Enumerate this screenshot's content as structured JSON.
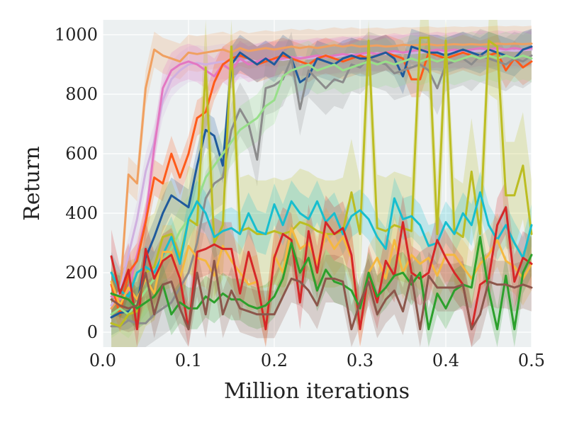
{
  "chart_data": {
    "type": "line",
    "title": "",
    "xlabel": "Million iterations",
    "ylabel": "Return",
    "xlim": [
      0.0,
      0.5
    ],
    "ylim": [
      -50,
      1050
    ],
    "xticks": [
      0.0,
      0.1,
      0.2,
      0.3,
      0.4,
      0.5
    ],
    "xtick_labels": [
      "0.0",
      "0.1",
      "0.2",
      "0.3",
      "0.4",
      "0.5"
    ],
    "yticks": [
      0,
      200,
      400,
      600,
      800,
      1000
    ],
    "ytick_labels": [
      "0",
      "200",
      "400",
      "600",
      "800",
      "1000"
    ],
    "grid": true,
    "background": "#ecf0f1",
    "x": [
      0.01,
      0.02,
      0.03,
      0.04,
      0.05,
      0.06,
      0.07,
      0.08,
      0.09,
      0.1,
      0.11,
      0.12,
      0.13,
      0.14,
      0.15,
      0.16,
      0.17,
      0.18,
      0.19,
      0.2,
      0.21,
      0.22,
      0.23,
      0.24,
      0.25,
      0.26,
      0.27,
      0.28,
      0.29,
      0.3,
      0.31,
      0.32,
      0.33,
      0.34,
      0.35,
      0.36,
      0.37,
      0.38,
      0.39,
      0.4,
      0.41,
      0.42,
      0.43,
      0.44,
      0.45,
      0.46,
      0.47,
      0.48,
      0.49,
      0.5
    ],
    "series": [
      {
        "color": "#f0a060",
        "band": 60,
        "values": [
          80,
          120,
          530,
          500,
          820,
          950,
          930,
          920,
          910,
          940,
          935,
          940,
          945,
          950,
          940,
          955,
          945,
          950,
          955,
          950,
          955,
          960,
          955,
          960,
          955,
          960,
          965,
          960,
          965,
          960,
          962,
          964,
          960,
          962,
          966,
          964,
          966,
          968,
          964,
          966,
          968,
          966,
          968,
          966,
          968,
          970,
          968,
          970,
          968,
          970
        ]
      },
      {
        "color": "#d0b0e0",
        "band": 60,
        "values": [
          90,
          140,
          260,
          380,
          540,
          640,
          780,
          850,
          880,
          900,
          905,
          900,
          905,
          910,
          905,
          910,
          915,
          910,
          915,
          920,
          915,
          920,
          925,
          920,
          925,
          930,
          925,
          930,
          935,
          930,
          935,
          938,
          935,
          938,
          940,
          938,
          940,
          942,
          940,
          942,
          944,
          942,
          944,
          946,
          944,
          946,
          948,
          946,
          948,
          950
        ]
      },
      {
        "color": "#e377c2",
        "band": 60,
        "values": [
          120,
          110,
          140,
          260,
          380,
          620,
          820,
          880,
          900,
          910,
          900,
          880,
          860,
          900,
          880,
          920,
          900,
          910,
          920,
          915,
          920,
          925,
          920,
          925,
          930,
          925,
          930,
          935,
          930,
          935,
          940,
          935,
          940,
          945,
          940,
          945,
          950,
          945,
          950,
          945,
          950,
          945,
          950,
          955,
          950,
          955,
          950,
          955,
          950,
          955
        ]
      },
      {
        "color": "#ff5a1a",
        "band": 60,
        "values": [
          160,
          60,
          200,
          240,
          370,
          520,
          500,
          600,
          520,
          600,
          720,
          740,
          840,
          900,
          920,
          930,
          920,
          900,
          910,
          920,
          930,
          920,
          910,
          900,
          920,
          930,
          920,
          910,
          920,
          930,
          920,
          930,
          940,
          930,
          920,
          850,
          850,
          940,
          930,
          920,
          930,
          940,
          930,
          920,
          930,
          940,
          880,
          920,
          890,
          910
        ]
      },
      {
        "color": "#1f5a9c",
        "band": 60,
        "values": [
          50,
          65,
          70,
          90,
          250,
          320,
          400,
          460,
          440,
          420,
          560,
          680,
          660,
          560,
          900,
          940,
          920,
          900,
          920,
          900,
          940,
          920,
          840,
          860,
          920,
          910,
          900,
          920,
          930,
          920,
          920,
          930,
          940,
          920,
          860,
          960,
          950,
          940,
          940,
          930,
          940,
          950,
          940,
          930,
          950,
          940,
          930,
          920,
          950,
          960
        ]
      },
      {
        "color": "#8c8c8c",
        "band": 90,
        "values": [
          20,
          20,
          40,
          30,
          30,
          60,
          80,
          100,
          150,
          200,
          300,
          450,
          500,
          520,
          680,
          750,
          700,
          580,
          820,
          830,
          850,
          920,
          750,
          880,
          850,
          820,
          850,
          840,
          900,
          890,
          920,
          910,
          900,
          870,
          880,
          890,
          900,
          880,
          820,
          900,
          910,
          920,
          900,
          930,
          920,
          910,
          900,
          920,
          910,
          930
        ]
      },
      {
        "color": "#98df8a",
        "band": 80,
        "values": [
          60,
          80,
          60,
          100,
          140,
          180,
          240,
          280,
          340,
          380,
          440,
          520,
          560,
          600,
          640,
          680,
          700,
          720,
          760,
          780,
          860,
          880,
          890,
          900,
          880,
          890,
          900,
          880,
          890,
          900,
          910,
          900,
          910,
          900,
          910,
          920,
          910,
          920,
          910,
          920,
          910,
          920,
          930,
          920,
          930,
          920,
          930,
          920,
          930,
          920
        ]
      },
      {
        "color": "#bcbd22",
        "band": 180,
        "values": [
          30,
          20,
          60,
          70,
          200,
          220,
          320,
          330,
          250,
          380,
          360,
          890,
          300,
          360,
          960,
          340,
          350,
          330,
          330,
          340,
          330,
          340,
          370,
          360,
          340,
          330,
          330,
          340,
          470,
          330,
          980,
          350,
          340,
          360,
          350,
          340,
          990,
          990,
          330,
          980,
          340,
          320,
          540,
          330,
          980,
          960,
          460,
          460,
          560,
          330
        ]
      },
      {
        "color": "#17becf",
        "band": 70,
        "values": [
          200,
          140,
          120,
          200,
          220,
          200,
          260,
          320,
          230,
          380,
          440,
          400,
          320,
          340,
          350,
          330,
          400,
          340,
          330,
          430,
          360,
          440,
          400,
          380,
          440,
          370,
          400,
          330,
          390,
          410,
          380,
          320,
          280,
          450,
          380,
          390,
          360,
          290,
          300,
          370,
          330,
          400,
          360,
          470,
          360,
          310,
          360,
          300,
          250,
          360
        ]
      },
      {
        "color": "#f5b840",
        "band": 90,
        "values": [
          170,
          90,
          150,
          110,
          180,
          130,
          270,
          270,
          180,
          290,
          250,
          240,
          190,
          290,
          240,
          200,
          160,
          170,
          10,
          260,
          200,
          350,
          280,
          300,
          230,
          330,
          280,
          320,
          250,
          10,
          200,
          250,
          180,
          310,
          200,
          260,
          230,
          250,
          190,
          260,
          260,
          220,
          180,
          230,
          260,
          310,
          240,
          220,
          180,
          230
        ]
      },
      {
        "color": "#d62728",
        "band": 90,
        "values": [
          255,
          130,
          210,
          10,
          280,
          180,
          240,
          260,
          180,
          10,
          270,
          280,
          295,
          280,
          280,
          130,
          270,
          170,
          10,
          250,
          330,
          310,
          100,
          340,
          200,
          370,
          330,
          350,
          260,
          10,
          200,
          100,
          240,
          190,
          370,
          200,
          180,
          200,
          310,
          250,
          200,
          160,
          10,
          160,
          180,
          360,
          420,
          170,
          250,
          230
        ]
      },
      {
        "color": "#2ca02c",
        "band": 70,
        "values": [
          130,
          120,
          110,
          80,
          100,
          120,
          160,
          60,
          100,
          80,
          80,
          120,
          100,
          130,
          110,
          110,
          90,
          80,
          90,
          120,
          180,
          300,
          200,
          250,
          140,
          210,
          170,
          160,
          140,
          80,
          200,
          120,
          150,
          190,
          200,
          160,
          200,
          10,
          130,
          80,
          140,
          160,
          150,
          320,
          140,
          10,
          190,
          10,
          200,
          260
        ]
      },
      {
        "color": "#8c564b",
        "band": 80,
        "values": [
          110,
          90,
          80,
          90,
          200,
          60,
          160,
          170,
          80,
          10,
          200,
          60,
          240,
          60,
          140,
          80,
          70,
          60,
          60,
          60,
          120,
          180,
          170,
          140,
          90,
          180,
          180,
          170,
          10,
          100,
          170,
          60,
          110,
          140,
          70,
          190,
          10,
          190,
          150,
          150,
          150,
          160,
          10,
          60,
          170,
          160,
          160,
          150,
          160,
          150
        ]
      }
    ]
  }
}
